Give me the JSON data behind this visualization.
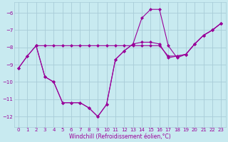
{
  "background_color": "#c8eaf0",
  "grid_color": "#a8ccd8",
  "line_color": "#990099",
  "xlabel": "Windchill (Refroidissement éolien,°C)",
  "xlim": [
    -0.5,
    23.5
  ],
  "ylim": [
    -12.6,
    -5.4
  ],
  "yticks": [
    -12,
    -11,
    -10,
    -9,
    -8,
    -7,
    -6
  ],
  "xticks": [
    0,
    1,
    2,
    3,
    4,
    5,
    6,
    7,
    8,
    9,
    10,
    11,
    12,
    13,
    14,
    15,
    16,
    17,
    18,
    19,
    20,
    21,
    22,
    23
  ],
  "line1_x": [
    0,
    1,
    2,
    3,
    4,
    5,
    6,
    7,
    8,
    9,
    10,
    11,
    12,
    13,
    14,
    15,
    16,
    17,
    18,
    19,
    20,
    21,
    22,
    23
  ],
  "line1_y": [
    -9.2,
    -8.5,
    -7.9,
    -9.7,
    -10.0,
    -11.2,
    -11.2,
    -11.2,
    -11.5,
    -12.0,
    -11.3,
    -8.7,
    -8.2,
    -7.8,
    -6.3,
    -5.8,
    -5.8,
    -7.9,
    -8.6,
    -8.4,
    -7.8,
    -7.3,
    -7.0,
    -6.6
  ],
  "line2_x": [
    0,
    1,
    2,
    3,
    4,
    5,
    6,
    7,
    8,
    9,
    10,
    11,
    12,
    13,
    14,
    15,
    16,
    17,
    18,
    19,
    20,
    21,
    22,
    23
  ],
  "line2_y": [
    -9.2,
    -8.5,
    -7.9,
    -9.7,
    -10.0,
    -11.2,
    -11.2,
    -11.2,
    -11.5,
    -12.0,
    -11.3,
    -8.7,
    -8.2,
    -7.8,
    -7.7,
    -7.7,
    -7.8,
    -8.6,
    -8.5,
    -8.4,
    -7.8,
    -7.3,
    -7.0,
    -6.6
  ],
  "line3_x": [
    2,
    3,
    4,
    5,
    6,
    7,
    8,
    9,
    10,
    11,
    12,
    13,
    14,
    15,
    16,
    17,
    18,
    19,
    20,
    21,
    22,
    23
  ],
  "line3_y": [
    -7.9,
    -7.9,
    -7.9,
    -7.9,
    -7.9,
    -7.9,
    -7.9,
    -7.9,
    -7.9,
    -7.9,
    -7.9,
    -7.9,
    -7.9,
    -7.9,
    -7.9,
    -8.5,
    -8.5,
    -8.4,
    -7.8,
    -7.3,
    -7.0,
    -6.6
  ]
}
